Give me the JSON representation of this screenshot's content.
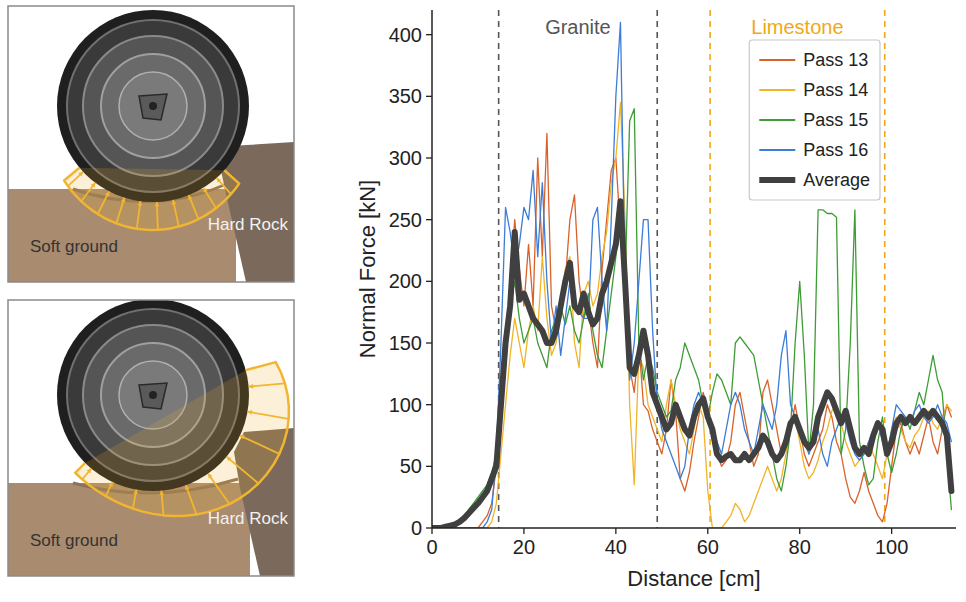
{
  "illustrations": [
    {
      "left_label": "Soft ground",
      "right_label": "Hard Rock"
    },
    {
      "left_label": "Soft ground",
      "right_label": "Hard Rock"
    }
  ],
  "chart_data": {
    "type": "line",
    "x_label": "Distance [cm]",
    "y_label": "Normal Force [kN]",
    "xlim": [
      0,
      114
    ],
    "ylim": [
      0,
      420
    ],
    "xticks": [
      0,
      20,
      40,
      60,
      80,
      100
    ],
    "yticks": [
      0,
      50,
      100,
      150,
      200,
      250,
      300,
      350,
      400
    ],
    "grid": false,
    "legend": "upper right",
    "regions": [
      {
        "label": "Granite",
        "start": 14.5,
        "end": 49,
        "color": "#555555",
        "line_style": "dashed"
      },
      {
        "label": "Limestone",
        "start": 60.5,
        "end": 98.5,
        "color": "#f0a818",
        "line_style": "dashed"
      }
    ],
    "x": [
      0,
      1,
      2,
      3,
      4,
      5,
      6,
      7,
      8,
      9,
      10,
      11,
      12,
      13,
      14,
      15,
      16,
      17,
      18,
      19,
      20,
      21,
      22,
      23,
      24,
      25,
      26,
      27,
      28,
      29,
      30,
      31,
      32,
      33,
      34,
      35,
      36,
      37,
      38,
      39,
      40,
      41,
      42,
      43,
      44,
      45,
      46,
      47,
      48,
      49,
      50,
      51,
      52,
      53,
      54,
      55,
      56,
      57,
      58,
      59,
      60,
      61,
      62,
      63,
      64,
      65,
      66,
      67,
      68,
      69,
      70,
      71,
      72,
      73,
      74,
      75,
      76,
      77,
      78,
      79,
      80,
      81,
      82,
      83,
      84,
      85,
      86,
      87,
      88,
      89,
      90,
      91,
      92,
      93,
      94,
      95,
      96,
      97,
      98,
      99,
      100,
      101,
      102,
      103,
      104,
      105,
      106,
      107,
      108,
      109,
      110,
      111,
      112,
      113
    ],
    "series": [
      {
        "name": "Pass 13",
        "color": "#d9622b",
        "line_style": "solid",
        "values": [
          0,
          0,
          0,
          0,
          0,
          0,
          0,
          0,
          0,
          0,
          0,
          5,
          10,
          20,
          50,
          100,
          150,
          200,
          250,
          210,
          180,
          230,
          180,
          300,
          220,
          320,
          180,
          160,
          170,
          200,
          250,
          270,
          200,
          170,
          180,
          150,
          130,
          210,
          250,
          290,
          300,
          240,
          180,
          130,
          110,
          150,
          100,
          95,
          80,
          70,
          60,
          80,
          120,
          95,
          40,
          30,
          45,
          70,
          90,
          110,
          95,
          75,
          60,
          50,
          55,
          70,
          100,
          110,
          90,
          70,
          50,
          60,
          110,
          120,
          100,
          80,
          60,
          65,
          80,
          100,
          80,
          60,
          50,
          60,
          70,
          80,
          100,
          90,
          70,
          60,
          40,
          25,
          20,
          30,
          45,
          30,
          20,
          10,
          5,
          20,
          50,
          80,
          85,
          70,
          60,
          70,
          60,
          75,
          90,
          70,
          60,
          80,
          100,
          90
        ]
      },
      {
        "name": "Pass 14",
        "color": "#f0b429",
        "line_style": "solid",
        "values": [
          0,
          0,
          0,
          0,
          0,
          0,
          0,
          0,
          0,
          0,
          0,
          0,
          0,
          5,
          20,
          60,
          100,
          140,
          170,
          150,
          130,
          160,
          180,
          160,
          220,
          170,
          140,
          150,
          180,
          210,
          220,
          150,
          130,
          190,
          200,
          180,
          190,
          220,
          240,
          280,
          300,
          345,
          250,
          100,
          35,
          140,
          130,
          100,
          90,
          80,
          70,
          100,
          120,
          100,
          80,
          70,
          60,
          80,
          100,
          90,
          30,
          0,
          0,
          0,
          5,
          10,
          20,
          15,
          5,
          10,
          20,
          30,
          40,
          50,
          40,
          30,
          40,
          60,
          80,
          90,
          70,
          50,
          40,
          45,
          55,
          70,
          80,
          95,
          100,
          85,
          70,
          60,
          50,
          55,
          60,
          70,
          60,
          50,
          40,
          60,
          80,
          90,
          80,
          70,
          65,
          75,
          80,
          90,
          95,
          85,
          80,
          90,
          100,
          95
        ]
      },
      {
        "name": "Pass 15",
        "color": "#3e9c35",
        "line_style": "solid",
        "values": [
          0,
          0,
          0,
          0,
          0,
          0,
          5,
          10,
          15,
          20,
          25,
          30,
          35,
          45,
          60,
          90,
          130,
          180,
          200,
          170,
          150,
          160,
          170,
          150,
          140,
          130,
          160,
          170,
          180,
          165,
          180,
          160,
          150,
          170,
          190,
          160,
          140,
          130,
          160,
          190,
          220,
          260,
          200,
          330,
          340,
          150,
          120,
          140,
          130,
          110,
          100,
          90,
          95,
          120,
          130,
          150,
          140,
          130,
          120,
          100,
          90,
          110,
          125,
          120,
          110,
          100,
          150,
          155,
          150,
          145,
          140,
          120,
          100,
          80,
          60,
          40,
          30,
          50,
          80,
          150,
          200,
          140,
          60,
          100,
          258,
          258,
          255,
          255,
          252,
          60,
          80,
          150,
          258,
          70,
          50,
          35,
          40,
          70,
          90,
          60,
          45,
          60,
          80,
          90,
          80,
          95,
          110,
          100,
          120,
          140,
          120,
          110,
          60,
          15
        ]
      },
      {
        "name": "Pass 16",
        "color": "#3b7dd8",
        "line_style": "solid",
        "values": [
          0,
          0,
          0,
          0,
          0,
          0,
          0,
          0,
          0,
          0,
          0,
          0,
          5,
          15,
          60,
          150,
          260,
          240,
          210,
          230,
          260,
          250,
          290,
          220,
          280,
          200,
          150,
          180,
          140,
          170,
          200,
          180,
          175,
          170,
          170,
          250,
          260,
          200,
          160,
          250,
          350,
          410,
          200,
          120,
          150,
          200,
          250,
          250,
          160,
          100,
          80,
          70,
          60,
          50,
          40,
          50,
          80,
          100,
          110,
          100,
          90,
          80,
          70,
          60,
          80,
          100,
          110,
          100,
          80,
          70,
          60,
          80,
          100,
          90,
          80,
          100,
          140,
          160,
          100,
          90,
          80,
          70,
          60,
          70,
          80,
          60,
          50,
          70,
          80,
          90,
          85,
          70,
          60,
          55,
          60,
          70,
          80,
          85,
          70,
          60,
          80,
          100,
          95,
          90,
          85,
          95,
          100,
          90,
          85,
          90,
          100,
          90,
          85,
          70
        ]
      },
      {
        "name": "Average",
        "color": "#404040",
        "line_style": "bold",
        "values": [
          0,
          0,
          0,
          1,
          2,
          3,
          5,
          8,
          12,
          16,
          20,
          25,
          30,
          40,
          50,
          100,
          150,
          180,
          240,
          185,
          190,
          180,
          170,
          165,
          160,
          150,
          150,
          160,
          180,
          200,
          215,
          180,
          175,
          190,
          175,
          165,
          170,
          190,
          200,
          215,
          230,
          265,
          200,
          130,
          125,
          140,
          160,
          140,
          110,
          100,
          90,
          80,
          85,
          100,
          90,
          80,
          75,
          90,
          100,
          105,
          90,
          80,
          60,
          55,
          58,
          60,
          55,
          55,
          60,
          55,
          60,
          65,
          75,
          70,
          60,
          55,
          60,
          70,
          85,
          90,
          80,
          70,
          65,
          70,
          90,
          100,
          110,
          105,
          95,
          85,
          95,
          80,
          65,
          60,
          65,
          60,
          75,
          85,
          80,
          60,
          70,
          85,
          90,
          85,
          90,
          85,
          90,
          95,
          90,
          95,
          90,
          85,
          75,
          30
        ]
      }
    ]
  }
}
